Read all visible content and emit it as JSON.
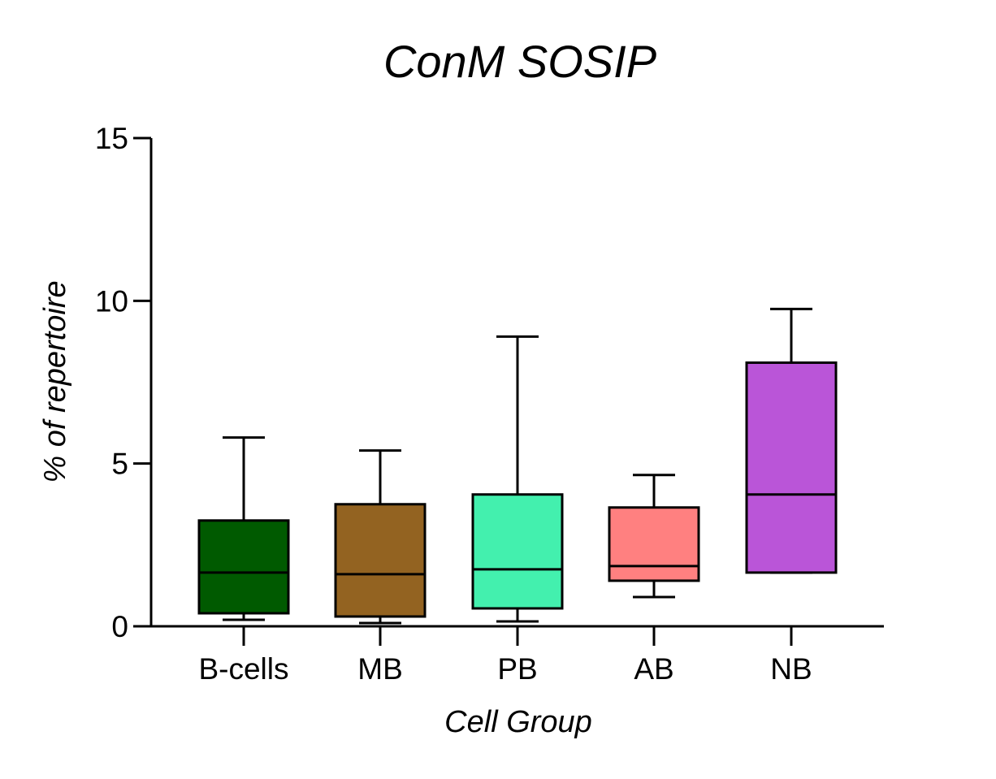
{
  "chart_data": {
    "type": "box",
    "title": "ConM SOSIP",
    "xlabel": "Cell Group",
    "ylabel": "% of repertoire",
    "ylim": [
      0,
      15
    ],
    "y_ticks": [
      0,
      5,
      10,
      15
    ],
    "y_tick_labels": [
      "0",
      "5",
      "10",
      "15"
    ],
    "grid": false,
    "categories": [
      "B-cells",
      "MB",
      "PB",
      "AB",
      "NB"
    ],
    "series": [
      {
        "category": "B-cells",
        "color": "#005A00",
        "min": 0.2,
        "q1": 0.4,
        "median": 1.65,
        "q3": 3.25,
        "max": 5.8
      },
      {
        "category": "MB",
        "color": "#936321",
        "min": 0.1,
        "q1": 0.3,
        "median": 1.6,
        "q3": 3.75,
        "max": 5.4
      },
      {
        "category": "PB",
        "color": "#43F0AE",
        "min": 0.15,
        "q1": 0.55,
        "median": 1.75,
        "q3": 4.05,
        "max": 8.9
      },
      {
        "category": "AB",
        "color": "#FF8080",
        "min": 0.9,
        "q1": 1.4,
        "median": 1.85,
        "q3": 3.65,
        "max": 4.65
      },
      {
        "category": "NB",
        "color": "#BA55D8",
        "min": 1.65,
        "q1": 1.65,
        "median": 4.05,
        "q3": 8.1,
        "max": 9.75
      }
    ]
  }
}
